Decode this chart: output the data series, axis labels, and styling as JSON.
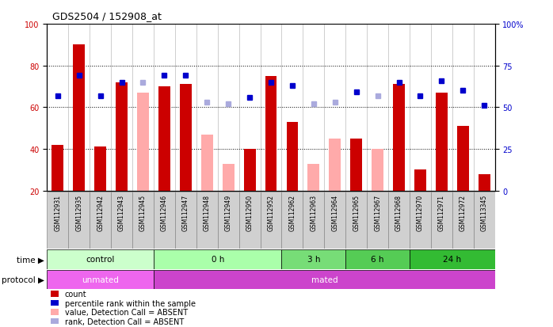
{
  "title": "GDS2504 / 152908_at",
  "samples": [
    "GSM112931",
    "GSM112935",
    "GSM112942",
    "GSM112943",
    "GSM112945",
    "GSM112946",
    "GSM112947",
    "GSM112948",
    "GSM112949",
    "GSM112950",
    "GSM112952",
    "GSM112962",
    "GSM112963",
    "GSM112964",
    "GSM112965",
    "GSM112967",
    "GSM112968",
    "GSM112970",
    "GSM112971",
    "GSM112972",
    "GSM113345"
  ],
  "count_values": [
    42,
    90,
    41,
    72,
    null,
    70,
    71,
    null,
    null,
    40,
    75,
    53,
    null,
    null,
    45,
    null,
    71,
    30,
    67,
    51,
    28
  ],
  "count_absent": [
    null,
    null,
    null,
    null,
    67,
    null,
    null,
    47,
    33,
    null,
    null,
    null,
    33,
    45,
    null,
    40,
    null,
    null,
    null,
    null,
    null
  ],
  "rank_values": [
    57,
    69,
    57,
    65,
    null,
    69,
    69,
    null,
    null,
    56,
    65,
    63,
    null,
    null,
    59,
    null,
    65,
    57,
    66,
    60,
    51
  ],
  "rank_absent": [
    null,
    null,
    null,
    null,
    65,
    null,
    null,
    53,
    52,
    null,
    null,
    null,
    52,
    53,
    null,
    57,
    null,
    null,
    null,
    null,
    null
  ],
  "time_groups": [
    {
      "label": "control",
      "start": 0,
      "end": 5,
      "color": "#ccffcc"
    },
    {
      "label": "0 h",
      "start": 5,
      "end": 11,
      "color": "#aaffaa"
    },
    {
      "label": "3 h",
      "start": 11,
      "end": 14,
      "color": "#77dd77"
    },
    {
      "label": "6 h",
      "start": 14,
      "end": 17,
      "color": "#55cc55"
    },
    {
      "label": "24 h",
      "start": 17,
      "end": 21,
      "color": "#33bb33"
    }
  ],
  "protocol_groups": [
    {
      "label": "unmated",
      "start": 0,
      "end": 5,
      "color": "#ee66ee"
    },
    {
      "label": "mated",
      "start": 5,
      "end": 21,
      "color": "#cc44cc"
    }
  ],
  "ylim_left": [
    20,
    100
  ],
  "ylim_right": [
    0,
    100
  ],
  "color_count": "#cc0000",
  "color_count_absent": "#ffaaaa",
  "color_rank": "#0000cc",
  "color_rank_absent": "#aaaadd",
  "bg_color": "#ffffff",
  "legend_labels": [
    "count",
    "percentile rank within the sample",
    "value, Detection Call = ABSENT",
    "rank, Detection Call = ABSENT"
  ]
}
